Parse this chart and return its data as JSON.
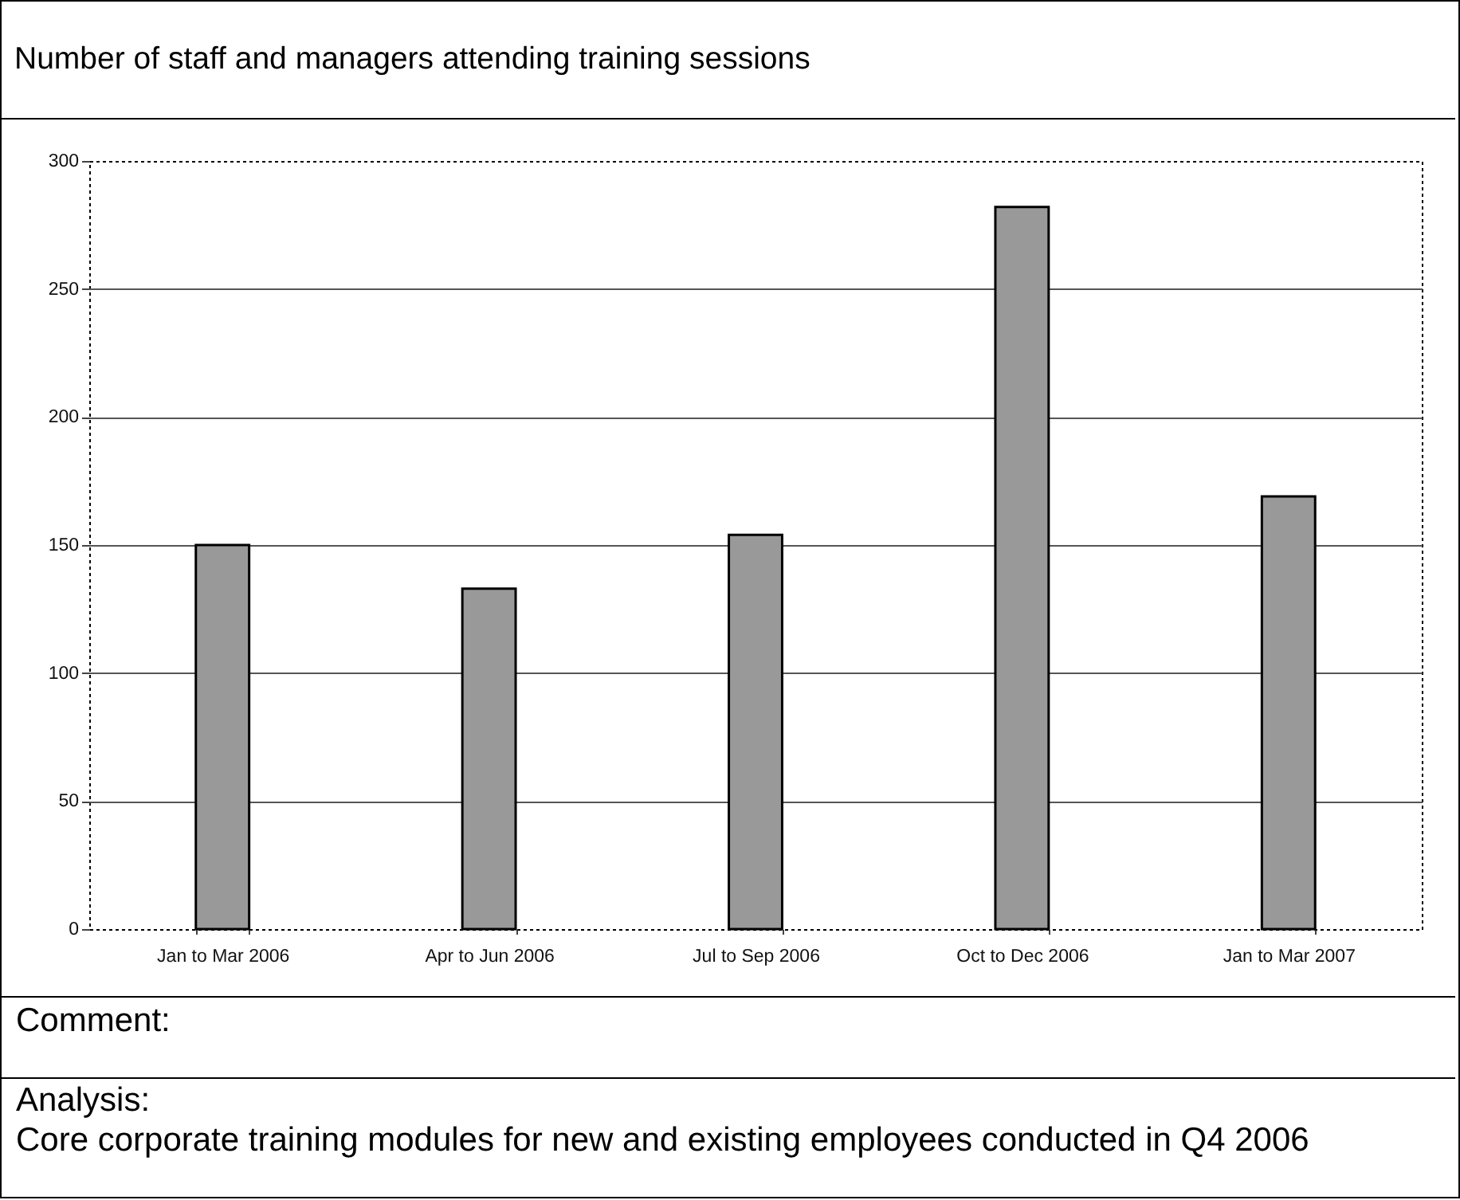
{
  "chart_data": {
    "type": "bar",
    "title": "Number of staff and managers attending training sessions",
    "categories": [
      "Jan to Mar 2006",
      "Apr to Jun 2006",
      "Jul to Sep 2006",
      "Oct to Dec 2006",
      "Jan to Mar 2007"
    ],
    "values": [
      150,
      133,
      154,
      282,
      169
    ],
    "color": "#999999",
    "ylim": [
      0,
      300
    ],
    "yticks": [
      0,
      50,
      100,
      150,
      200,
      250,
      300
    ],
    "grid": "y",
    "annotations": [
      "Comment:",
      "Analysis:",
      "Core corporate training modules for new and existing employees conducted in Q4 2006"
    ]
  }
}
